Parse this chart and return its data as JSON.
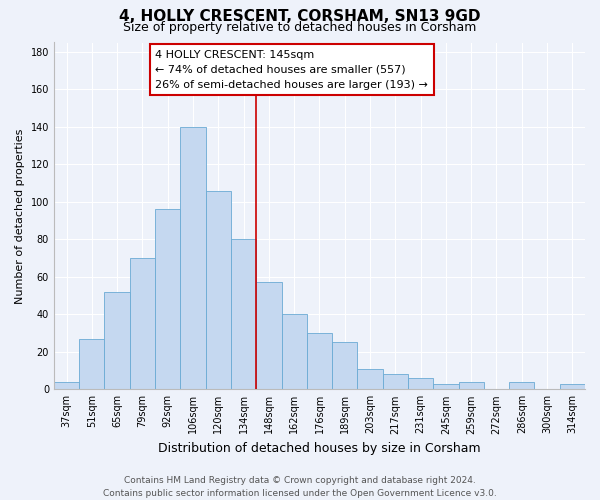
{
  "title": "4, HOLLY CRESCENT, CORSHAM, SN13 9GD",
  "subtitle": "Size of property relative to detached houses in Corsham",
  "xlabel": "Distribution of detached houses by size in Corsham",
  "ylabel": "Number of detached properties",
  "categories": [
    "37sqm",
    "51sqm",
    "65sqm",
    "79sqm",
    "92sqm",
    "106sqm",
    "120sqm",
    "134sqm",
    "148sqm",
    "162sqm",
    "176sqm",
    "189sqm",
    "203sqm",
    "217sqm",
    "231sqm",
    "245sqm",
    "259sqm",
    "272sqm",
    "286sqm",
    "300sqm",
    "314sqm"
  ],
  "values": [
    4,
    27,
    52,
    70,
    96,
    140,
    106,
    80,
    57,
    40,
    30,
    25,
    11,
    8,
    6,
    3,
    4,
    0,
    4,
    0,
    3
  ],
  "bar_color": "#c5d8f0",
  "bar_edge_color": "#6aaad4",
  "property_line_label": "4 HOLLY CRESCENT: 145sqm",
  "annotation_smaller": "← 74% of detached houses are smaller (557)",
  "annotation_larger": "26% of semi-detached houses are larger (193) →",
  "annotation_box_color": "#ffffff",
  "annotation_box_edge_color": "#cc0000",
  "vline_color": "#cc0000",
  "vline_x_index": 7.5,
  "ylim": [
    0,
    185
  ],
  "yticks": [
    0,
    20,
    40,
    60,
    80,
    100,
    120,
    140,
    160,
    180
  ],
  "footer_line1": "Contains HM Land Registry data © Crown copyright and database right 2024.",
  "footer_line2": "Contains public sector information licensed under the Open Government Licence v3.0.",
  "background_color": "#eef2fa",
  "grid_color": "#ffffff",
  "title_fontsize": 11,
  "subtitle_fontsize": 9,
  "xlabel_fontsize": 9,
  "ylabel_fontsize": 8,
  "tick_fontsize": 7,
  "annotation_fontsize": 8,
  "footer_fontsize": 6.5
}
